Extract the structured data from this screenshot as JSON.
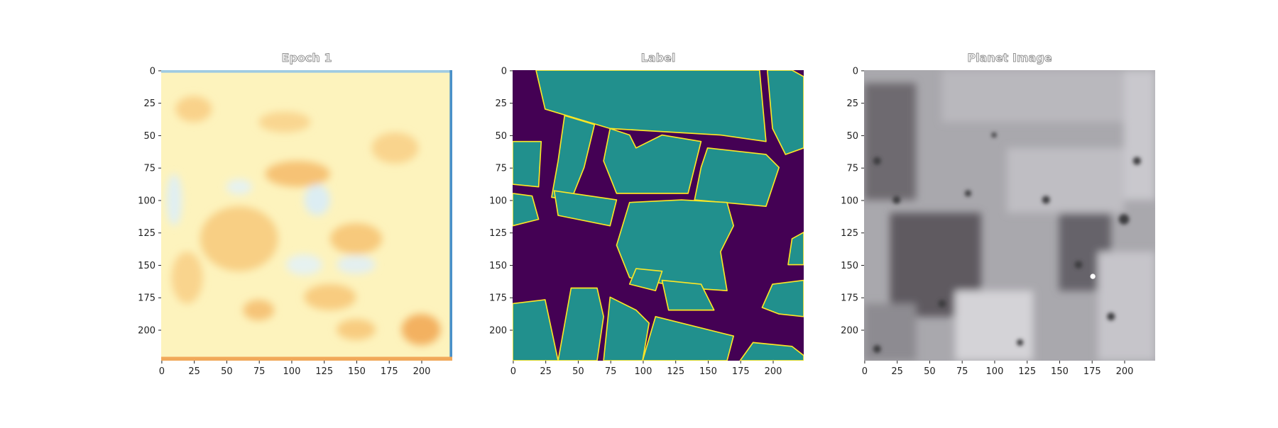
{
  "chart_data": [
    {
      "type": "image",
      "title": "Epoch 1",
      "xlim": [
        -0.5,
        223.5
      ],
      "ylim": [
        223.5,
        -0.5
      ],
      "xticks": [
        0,
        25,
        50,
        75,
        100,
        125,
        150,
        175,
        200
      ],
      "yticks": [
        0,
        25,
        50,
        75,
        100,
        125,
        150,
        175,
        200
      ]
    },
    {
      "type": "image",
      "title": "Label",
      "xlim": [
        -0.5,
        223.5
      ],
      "ylim": [
        223.5,
        -0.5
      ],
      "xticks": [
        0,
        25,
        50,
        75,
        100,
        125,
        150,
        175,
        200
      ],
      "yticks": [
        0,
        25,
        50,
        75,
        100,
        125,
        150,
        175,
        200
      ]
    },
    {
      "type": "image",
      "title": "Planet Image",
      "xlim": [
        -0.5,
        223.5
      ],
      "ylim": [
        223.5,
        -0.5
      ],
      "xticks": [
        0,
        25,
        50,
        75,
        100,
        125,
        150,
        175,
        200
      ],
      "yticks": [
        0,
        25,
        50,
        75,
        100,
        125,
        150,
        175,
        200
      ]
    }
  ]
}
